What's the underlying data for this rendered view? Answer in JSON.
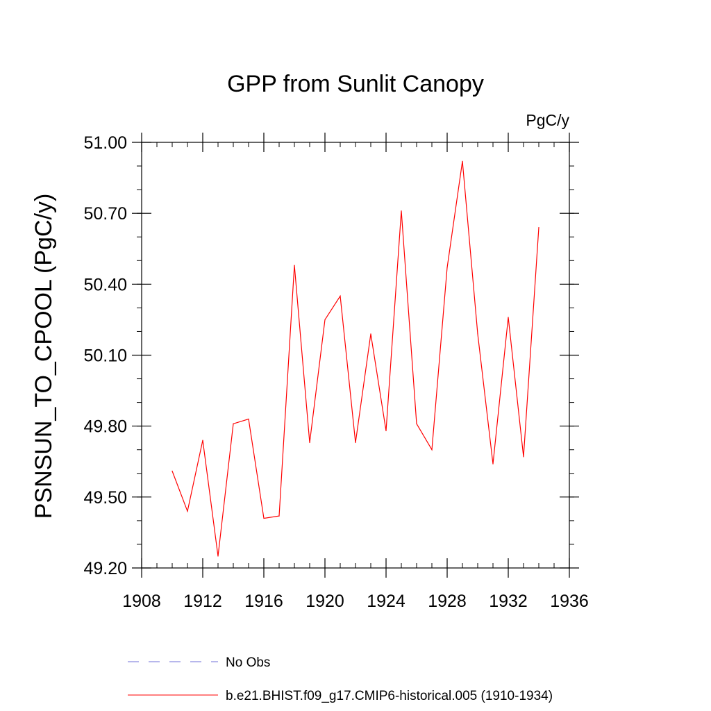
{
  "chart_data": {
    "type": "line",
    "title": "GPP from Sunlit Canopy",
    "units_label": "PgC/y",
    "ylabel": "PSNSUN_TO_CPOOL  (PgC/y)",
    "xlabel": "",
    "xlim": [
      1908,
      1936
    ],
    "ylim": [
      49.2,
      51.0
    ],
    "x_ticks": [
      1908,
      1912,
      1916,
      1920,
      1924,
      1928,
      1932,
      1936
    ],
    "x_tick_labels": [
      "1908",
      "1912",
      "1916",
      "1920",
      "1924",
      "1928",
      "1932",
      "1936"
    ],
    "x_minor_step": 1,
    "y_ticks": [
      49.2,
      49.5,
      49.8,
      50.1,
      50.4,
      50.7,
      51.0
    ],
    "y_tick_labels": [
      "49.20",
      "49.50",
      "49.80",
      "50.10",
      "50.40",
      "50.70",
      "51.00"
    ],
    "y_minor_step": 0.1,
    "grid": false,
    "legend_placement": "bottom",
    "series": [
      {
        "name": "b.e21.BHIST.f09_g17.CMIP6-historical.005 (1910-1934)",
        "color": "#ff0000",
        "style": "solid",
        "x": [
          1910,
          1911,
          1912,
          1913,
          1914,
          1915,
          1916,
          1917,
          1918,
          1919,
          1920,
          1921,
          1922,
          1923,
          1924,
          1925,
          1926,
          1927,
          1928,
          1929,
          1930,
          1931,
          1932,
          1933,
          1934
        ],
        "values": [
          49.61,
          49.44,
          49.74,
          49.25,
          49.81,
          49.83,
          49.41,
          49.42,
          50.48,
          49.73,
          50.25,
          50.35,
          49.73,
          50.19,
          49.78,
          50.71,
          49.81,
          49.7,
          50.47,
          50.92,
          50.19,
          49.64,
          50.26,
          49.67,
          50.64
        ]
      },
      {
        "name": "No Obs",
        "color": "#6f6fd8",
        "style": "dashed",
        "x": [],
        "values": []
      }
    ]
  }
}
